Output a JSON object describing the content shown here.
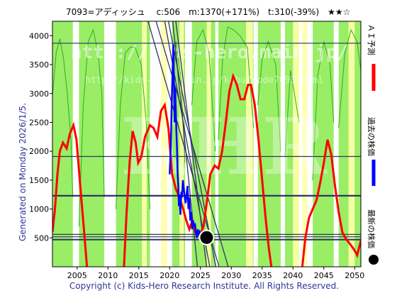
{
  "chart_data": {
    "type": "line",
    "title": "7093=アディッシュ　 c:506　m:1370(+171%)　t:310(-39%)　★★☆",
    "side_label": "Generated on Monday 2026/1/5.",
    "copyright": "Copyright (c) Kids-Hero Research Institute. All Rights Reserved.",
    "watermark_url": "http://kids-hero.main.jp/",
    "watermark_url2": "http://kids-hero.main.jp/kabu/code7093.html",
    "watermark_logo": "KHR",
    "xlim": [
      2001,
      2051
    ],
    "ylim": [
      0,
      4250
    ],
    "x_ticks": [
      2005,
      2010,
      2015,
      2020,
      2025,
      2030,
      2035,
      2040,
      2045,
      2050
    ],
    "y_ticks": [
      500,
      1000,
      1500,
      2000,
      2500,
      3000,
      3500,
      4000
    ],
    "legend": [
      {
        "label": "ＡＩ予測",
        "color": "#ff0000",
        "marker": "line"
      },
      {
        "label": "過去の株価",
        "color": "#0000ff",
        "marker": "line"
      },
      {
        "label": "最新の株価",
        "color": "#000000",
        "marker": "dot"
      }
    ],
    "colors": {
      "background": "#ffffff",
      "green_band": "#99ee66",
      "green_line": "#33aa22",
      "yellow_band": "#ffffaa",
      "h_line": "#333366",
      "diag_line": "#333366",
      "ai_line": "#ff0000",
      "price_line": "#0000ff",
      "latest_dot": "#000000",
      "border": "#000000"
    },
    "green_bands": [
      [
        2001.0,
        2004.3
      ],
      [
        2005.3,
        2009.4
      ],
      [
        2011.3,
        2016.8
      ],
      [
        2020.4,
        2022.5
      ],
      [
        2023.6,
        2027.4
      ],
      [
        2027.9,
        2033.6
      ],
      [
        2034.3,
        2038.0
      ],
      [
        2038.7,
        2041.0
      ],
      [
        2043.2,
        2046.6
      ],
      [
        2047.4,
        2051.0
      ]
    ],
    "yellow_bands": [
      [
        2015.5,
        2016.3
      ],
      [
        2018.6,
        2019.6
      ],
      [
        2021.6,
        2022.3
      ],
      [
        2026.0,
        2026.7
      ],
      [
        2032.4,
        2033.5
      ],
      [
        2040.0,
        2041.0
      ],
      [
        2041.5,
        2042.3
      ],
      [
        2049.0,
        2050.0
      ]
    ],
    "green_curves": [
      [
        [
          2001.0,
          2950
        ],
        [
          2001.6,
          3700
        ],
        [
          2002.2,
          3950
        ],
        [
          2002.8,
          3600
        ],
        [
          2003.4,
          3000
        ],
        [
          2004.0,
          2200
        ],
        [
          2004.3,
          1200
        ]
      ],
      [
        [
          2005.3,
          700
        ],
        [
          2006.0,
          2800
        ],
        [
          2006.8,
          3900
        ],
        [
          2007.6,
          4100
        ],
        [
          2008.4,
          3700
        ],
        [
          2009.0,
          3000
        ],
        [
          2009.4,
          1200
        ]
      ],
      [
        [
          2011.3,
          1000
        ],
        [
          2012.0,
          2800
        ],
        [
          2012.8,
          3700
        ],
        [
          2013.6,
          3800
        ],
        [
          2014.4,
          3800
        ],
        [
          2015.4,
          3500
        ],
        [
          2016.2,
          2500
        ],
        [
          2016.8,
          1000
        ]
      ],
      [
        [
          2020.4,
          3000
        ],
        [
          2021.0,
          3900
        ],
        [
          2021.8,
          3300
        ],
        [
          2022.5,
          1800
        ]
      ],
      [
        [
          2023.6,
          2800
        ],
        [
          2024.4,
          3900
        ],
        [
          2025.4,
          4100
        ],
        [
          2026.4,
          3700
        ],
        [
          2027.4,
          2000
        ]
      ],
      [
        [
          2027.9,
          2200
        ],
        [
          2028.6,
          3600
        ],
        [
          2029.4,
          4150
        ],
        [
          2030.4,
          4100
        ],
        [
          2031.4,
          4000
        ],
        [
          2032.6,
          3800
        ],
        [
          2033.6,
          2400
        ]
      ],
      [
        [
          2034.3,
          2800
        ],
        [
          2035.0,
          3600
        ],
        [
          2036.0,
          3900
        ],
        [
          2037.2,
          3500
        ],
        [
          2038.0,
          2000
        ]
      ],
      [
        [
          2038.7,
          1900
        ],
        [
          2039.6,
          3400
        ],
        [
          2041.0,
          2500
        ]
      ],
      [
        [
          2043.2,
          1500
        ],
        [
          2044.0,
          3300
        ],
        [
          2045.0,
          3900
        ],
        [
          2046.0,
          3500
        ],
        [
          2046.6,
          2500
        ]
      ],
      [
        [
          2047.4,
          2400
        ],
        [
          2048.4,
          3700
        ],
        [
          2049.4,
          4100
        ],
        [
          2050.4,
          3900
        ],
        [
          2051.0,
          3400
        ]
      ]
    ],
    "h_lines": [
      {
        "y": 3870,
        "width": 1.2
      },
      {
        "y": 1910,
        "width": 1.2
      },
      {
        "y": 1230,
        "width": 2.2
      },
      {
        "y": 560,
        "width": 1.2
      },
      {
        "y": 520,
        "width": 1.2
      },
      {
        "y": 470,
        "width": 2.0
      }
    ],
    "diag_lines": [
      [
        [
          2016.5,
          4250
        ],
        [
          2028.0,
          0
        ]
      ],
      [
        [
          2017.8,
          4250
        ],
        [
          2029.5,
          0
        ]
      ],
      [
        [
          2019.2,
          4250
        ],
        [
          2026.5,
          0
        ]
      ],
      [
        [
          2019.8,
          4250
        ],
        [
          2027.5,
          0
        ]
      ],
      [
        [
          2020.5,
          4250
        ],
        [
          2024.5,
          0
        ]
      ],
      [
        [
          2021.0,
          4250
        ],
        [
          2026.0,
          0
        ]
      ]
    ],
    "ai_forecast": [
      [
        2001.0,
        600
      ],
      [
        2001.4,
        1000
      ],
      [
        2001.8,
        1600
      ],
      [
        2002.2,
        2000
      ],
      [
        2002.7,
        2150
      ],
      [
        2003.3,
        2050
      ],
      [
        2003.8,
        2300
      ],
      [
        2004.4,
        2450
      ],
      [
        2004.9,
        2200
      ],
      [
        2005.5,
        1400
      ],
      [
        2006.1,
        650
      ],
      [
        2006.6,
        0
      ],
      [
        2012.6,
        0
      ],
      [
        2013.0,
        900
      ],
      [
        2013.5,
        1800
      ],
      [
        2014.0,
        2350
      ],
      [
        2014.5,
        2150
      ],
      [
        2014.9,
        1800
      ],
      [
        2015.4,
        1900
      ],
      [
        2016.0,
        2250
      ],
      [
        2016.8,
        2450
      ],
      [
        2017.4,
        2400
      ],
      [
        2018.0,
        2250
      ],
      [
        2018.6,
        2700
      ],
      [
        2019.2,
        2800
      ],
      [
        2019.8,
        2400
      ],
      [
        2020.4,
        1600
      ],
      [
        2021.0,
        1350
      ],
      [
        2021.6,
        1200
      ],
      [
        2022.2,
        1000
      ],
      [
        2022.7,
        800
      ],
      [
        2023.2,
        650
      ],
      [
        2023.7,
        800
      ],
      [
        2024.2,
        600
      ],
      [
        2024.6,
        550
      ],
      [
        2025.1,
        600
      ],
      [
        2025.5,
        700
      ],
      [
        2026.0,
        1100
      ],
      [
        2026.6,
        1600
      ],
      [
        2027.3,
        1750
      ],
      [
        2027.9,
        1700
      ],
      [
        2028.5,
        2000
      ],
      [
        2029.1,
        2500
      ],
      [
        2029.7,
        3050
      ],
      [
        2030.3,
        3300
      ],
      [
        2030.9,
        3150
      ],
      [
        2031.5,
        2900
      ],
      [
        2032.1,
        2900
      ],
      [
        2032.7,
        3150
      ],
      [
        2033.2,
        3150
      ],
      [
        2033.8,
        2800
      ],
      [
        2034.4,
        2200
      ],
      [
        2035.0,
        1500
      ],
      [
        2035.6,
        800
      ],
      [
        2036.1,
        300
      ],
      [
        2036.5,
        0
      ],
      [
        2041.5,
        0
      ],
      [
        2042.0,
        500
      ],
      [
        2042.6,
        850
      ],
      [
        2043.2,
        1000
      ],
      [
        2043.8,
        1150
      ],
      [
        2044.4,
        1450
      ],
      [
        2045.0,
        1800
      ],
      [
        2045.6,
        2200
      ],
      [
        2046.2,
        1950
      ],
      [
        2046.8,
        1400
      ],
      [
        2047.4,
        950
      ],
      [
        2048.0,
        600
      ],
      [
        2048.6,
        480
      ],
      [
        2049.2,
        400
      ],
      [
        2049.9,
        300
      ],
      [
        2050.4,
        200
      ],
      [
        2051.0,
        450
      ]
    ],
    "price_history": [
      [
        2020.0,
        1600
      ],
      [
        2020.2,
        2100
      ],
      [
        2020.35,
        2900
      ],
      [
        2020.5,
        3500
      ],
      [
        2020.6,
        3850
      ],
      [
        2020.7,
        3200
      ],
      [
        2020.8,
        2500
      ],
      [
        2020.9,
        3100
      ],
      [
        2021.0,
        2700
      ],
      [
        2021.1,
        2300
      ],
      [
        2021.2,
        2050
      ],
      [
        2021.3,
        1600
      ],
      [
        2021.4,
        1400
      ],
      [
        2021.5,
        1050
      ],
      [
        2021.6,
        1250
      ],
      [
        2021.75,
        900
      ],
      [
        2021.9,
        1300
      ],
      [
        2022.0,
        1200
      ],
      [
        2022.15,
        1500
      ],
      [
        2022.3,
        1350
      ],
      [
        2022.45,
        1200
      ],
      [
        2022.6,
        1100
      ],
      [
        2022.75,
        1250
      ],
      [
        2022.9,
        1400
      ],
      [
        2023.05,
        1000
      ],
      [
        2023.2,
        1200
      ],
      [
        2023.35,
        800
      ],
      [
        2023.5,
        950
      ],
      [
        2023.65,
        650
      ],
      [
        2023.8,
        800
      ],
      [
        2023.95,
        700
      ],
      [
        2024.1,
        750
      ],
      [
        2024.25,
        600
      ],
      [
        2024.4,
        500
      ],
      [
        2024.55,
        650
      ],
      [
        2024.7,
        550
      ],
      [
        2024.85,
        600
      ],
      [
        2025.0,
        550
      ]
    ],
    "latest_price": {
      "x": 2026.0,
      "y": 506
    }
  }
}
